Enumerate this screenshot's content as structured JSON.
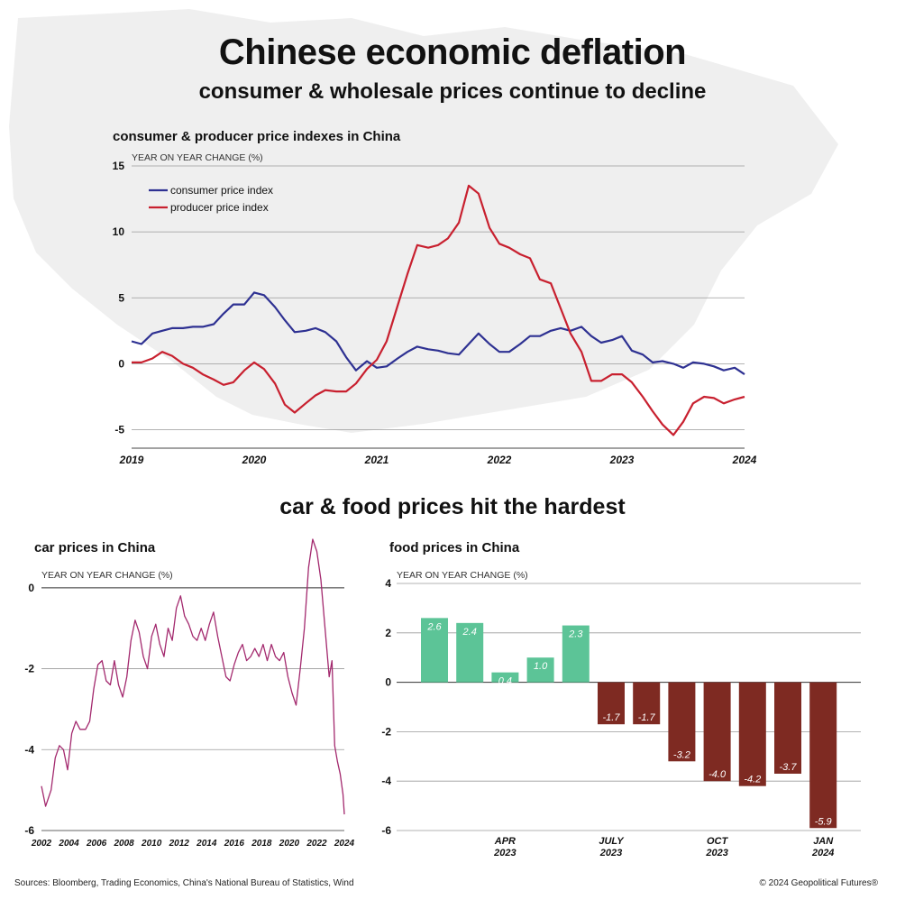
{
  "header": {
    "title": "Chinese economic deflation",
    "subtitle": "consumer & wholesale prices continue to decline"
  },
  "section_title": "car & food prices hit the hardest",
  "footer": {
    "sources": "Sources: Bloomberg, Trading Economics, China's National Bureau of Statistics, Wind",
    "copyright": "© 2024 Geopolitical Futures®"
  },
  "colors": {
    "cpi": "#2e3192",
    "ppi": "#c8202f",
    "car": "#a3296e",
    "food_positive": "#5cc497",
    "food_negative": "#7e2a22",
    "grid": "#9a9a9a",
    "map": "#efefef"
  },
  "chart_data": [
    {
      "type": "line",
      "title": "consumer & producer price indexes in China",
      "ylabel": "YEAR ON YEAR CHANGE (%)",
      "ylim": [
        -6,
        15
      ],
      "yticks": [
        15,
        10,
        5,
        0,
        -5
      ],
      "xlim": [
        2019,
        2024
      ],
      "xticks": [
        2019,
        2020,
        2021,
        2022,
        2023,
        2024
      ],
      "grid": true,
      "legend_position": "top-left",
      "series": [
        {
          "name": "consumer price index",
          "color_key": "cpi",
          "points": [
            [
              2019.0,
              1.7
            ],
            [
              2019.08,
              1.5
            ],
            [
              2019.17,
              2.3
            ],
            [
              2019.25,
              2.5
            ],
            [
              2019.33,
              2.7
            ],
            [
              2019.42,
              2.7
            ],
            [
              2019.5,
              2.8
            ],
            [
              2019.58,
              2.8
            ],
            [
              2019.67,
              3.0
            ],
            [
              2019.75,
              3.8
            ],
            [
              2019.83,
              4.5
            ],
            [
              2019.92,
              4.5
            ],
            [
              2020.0,
              5.4
            ],
            [
              2020.08,
              5.2
            ],
            [
              2020.17,
              4.3
            ],
            [
              2020.25,
              3.3
            ],
            [
              2020.33,
              2.4
            ],
            [
              2020.42,
              2.5
            ],
            [
              2020.5,
              2.7
            ],
            [
              2020.58,
              2.4
            ],
            [
              2020.67,
              1.7
            ],
            [
              2020.75,
              0.5
            ],
            [
              2020.83,
              -0.5
            ],
            [
              2020.92,
              0.2
            ],
            [
              2021.0,
              -0.3
            ],
            [
              2021.08,
              -0.2
            ],
            [
              2021.17,
              0.4
            ],
            [
              2021.25,
              0.9
            ],
            [
              2021.33,
              1.3
            ],
            [
              2021.42,
              1.1
            ],
            [
              2021.5,
              1.0
            ],
            [
              2021.58,
              0.8
            ],
            [
              2021.67,
              0.7
            ],
            [
              2021.75,
              1.5
            ],
            [
              2021.83,
              2.3
            ],
            [
              2021.92,
              1.5
            ],
            [
              2022.0,
              0.9
            ],
            [
              2022.08,
              0.9
            ],
            [
              2022.17,
              1.5
            ],
            [
              2022.25,
              2.1
            ],
            [
              2022.33,
              2.1
            ],
            [
              2022.42,
              2.5
            ],
            [
              2022.5,
              2.7
            ],
            [
              2022.58,
              2.5
            ],
            [
              2022.67,
              2.8
            ],
            [
              2022.75,
              2.1
            ],
            [
              2022.83,
              1.6
            ],
            [
              2022.92,
              1.8
            ],
            [
              2023.0,
              2.1
            ],
            [
              2023.08,
              1.0
            ],
            [
              2023.17,
              0.7
            ],
            [
              2023.25,
              0.1
            ],
            [
              2023.33,
              0.2
            ],
            [
              2023.42,
              0.0
            ],
            [
              2023.5,
              -0.3
            ],
            [
              2023.58,
              0.1
            ],
            [
              2023.67,
              0.0
            ],
            [
              2023.75,
              -0.2
            ],
            [
              2023.83,
              -0.5
            ],
            [
              2023.92,
              -0.3
            ],
            [
              2024.0,
              -0.8
            ]
          ]
        },
        {
          "name": "producer price index",
          "color_key": "ppi",
          "points": [
            [
              2019.0,
              0.1
            ],
            [
              2019.08,
              0.1
            ],
            [
              2019.17,
              0.4
            ],
            [
              2019.25,
              0.9
            ],
            [
              2019.33,
              0.6
            ],
            [
              2019.42,
              0.0
            ],
            [
              2019.5,
              -0.3
            ],
            [
              2019.58,
              -0.8
            ],
            [
              2019.67,
              -1.2
            ],
            [
              2019.75,
              -1.6
            ],
            [
              2019.83,
              -1.4
            ],
            [
              2019.92,
              -0.5
            ],
            [
              2020.0,
              0.1
            ],
            [
              2020.08,
              -0.4
            ],
            [
              2020.17,
              -1.5
            ],
            [
              2020.25,
              -3.1
            ],
            [
              2020.33,
              -3.7
            ],
            [
              2020.42,
              -3.0
            ],
            [
              2020.5,
              -2.4
            ],
            [
              2020.58,
              -2.0
            ],
            [
              2020.67,
              -2.1
            ],
            [
              2020.75,
              -2.1
            ],
            [
              2020.83,
              -1.5
            ],
            [
              2020.92,
              -0.4
            ],
            [
              2021.0,
              0.3
            ],
            [
              2021.08,
              1.7
            ],
            [
              2021.17,
              4.4
            ],
            [
              2021.25,
              6.8
            ],
            [
              2021.33,
              9.0
            ],
            [
              2021.42,
              8.8
            ],
            [
              2021.5,
              9.0
            ],
            [
              2021.58,
              9.5
            ],
            [
              2021.67,
              10.7
            ],
            [
              2021.75,
              13.5
            ],
            [
              2021.83,
              12.9
            ],
            [
              2021.92,
              10.3
            ],
            [
              2022.0,
              9.1
            ],
            [
              2022.08,
              8.8
            ],
            [
              2022.17,
              8.3
            ],
            [
              2022.25,
              8.0
            ],
            [
              2022.33,
              6.4
            ],
            [
              2022.42,
              6.1
            ],
            [
              2022.5,
              4.2
            ],
            [
              2022.58,
              2.3
            ],
            [
              2022.67,
              0.9
            ],
            [
              2022.75,
              -1.3
            ],
            [
              2022.83,
              -1.3
            ],
            [
              2022.92,
              -0.8
            ],
            [
              2023.0,
              -0.8
            ],
            [
              2023.08,
              -1.4
            ],
            [
              2023.17,
              -2.5
            ],
            [
              2023.25,
              -3.6
            ],
            [
              2023.33,
              -4.6
            ],
            [
              2023.42,
              -5.4
            ],
            [
              2023.5,
              -4.4
            ],
            [
              2023.58,
              -3.0
            ],
            [
              2023.67,
              -2.5
            ],
            [
              2023.75,
              -2.6
            ],
            [
              2023.83,
              -3.0
            ],
            [
              2023.92,
              -2.7
            ],
            [
              2024.0,
              -2.5
            ]
          ]
        }
      ]
    },
    {
      "type": "line",
      "title": "car prices in China",
      "ylabel": "YEAR ON YEAR CHANGE (%)",
      "ylim": [
        -6,
        1.2
      ],
      "yticks": [
        0,
        -2,
        -4,
        -6
      ],
      "xlim": [
        2002,
        2024
      ],
      "xticks": [
        2002,
        2004,
        2006,
        2008,
        2010,
        2012,
        2014,
        2016,
        2018,
        2020,
        2022,
        2024
      ],
      "grid": true,
      "series": [
        {
          "name": "",
          "color_key": "car",
          "points": [
            [
              2002.0,
              -4.9
            ],
            [
              2002.3,
              -5.4
            ],
            [
              2002.7,
              -5.0
            ],
            [
              2003.0,
              -4.2
            ],
            [
              2003.3,
              -3.9
            ],
            [
              2003.6,
              -4.0
            ],
            [
              2003.9,
              -4.5
            ],
            [
              2004.2,
              -3.6
            ],
            [
              2004.5,
              -3.3
            ],
            [
              2004.8,
              -3.5
            ],
            [
              2005.2,
              -3.5
            ],
            [
              2005.5,
              -3.3
            ],
            [
              2005.8,
              -2.5
            ],
            [
              2006.1,
              -1.9
            ],
            [
              2006.4,
              -1.8
            ],
            [
              2006.7,
              -2.3
            ],
            [
              2007.0,
              -2.4
            ],
            [
              2007.3,
              -1.8
            ],
            [
              2007.6,
              -2.4
            ],
            [
              2007.9,
              -2.7
            ],
            [
              2008.2,
              -2.2
            ],
            [
              2008.5,
              -1.3
            ],
            [
              2008.8,
              -0.8
            ],
            [
              2009.1,
              -1.1
            ],
            [
              2009.4,
              -1.7
            ],
            [
              2009.7,
              -2.0
            ],
            [
              2010.0,
              -1.2
            ],
            [
              2010.3,
              -0.9
            ],
            [
              2010.6,
              -1.4
            ],
            [
              2010.9,
              -1.7
            ],
            [
              2011.2,
              -1.0
            ],
            [
              2011.5,
              -1.3
            ],
            [
              2011.8,
              -0.5
            ],
            [
              2012.1,
              -0.2
            ],
            [
              2012.4,
              -0.7
            ],
            [
              2012.7,
              -0.9
            ],
            [
              2013.0,
              -1.2
            ],
            [
              2013.3,
              -1.3
            ],
            [
              2013.6,
              -1.0
            ],
            [
              2013.9,
              -1.3
            ],
            [
              2014.2,
              -0.9
            ],
            [
              2014.5,
              -0.6
            ],
            [
              2014.8,
              -1.2
            ],
            [
              2015.1,
              -1.7
            ],
            [
              2015.4,
              -2.2
            ],
            [
              2015.7,
              -2.3
            ],
            [
              2016.0,
              -1.9
            ],
            [
              2016.3,
              -1.6
            ],
            [
              2016.6,
              -1.4
            ],
            [
              2016.9,
              -1.8
            ],
            [
              2017.2,
              -1.7
            ],
            [
              2017.5,
              -1.5
            ],
            [
              2017.8,
              -1.7
            ],
            [
              2018.1,
              -1.4
            ],
            [
              2018.4,
              -1.8
            ],
            [
              2018.7,
              -1.4
            ],
            [
              2019.0,
              -1.7
            ],
            [
              2019.3,
              -1.8
            ],
            [
              2019.6,
              -1.6
            ],
            [
              2019.9,
              -2.2
            ],
            [
              2020.2,
              -2.6
            ],
            [
              2020.5,
              -2.9
            ],
            [
              2020.8,
              -2.0
            ],
            [
              2021.1,
              -1.0
            ],
            [
              2021.4,
              0.5
            ],
            [
              2021.7,
              1.2
            ],
            [
              2022.0,
              0.9
            ],
            [
              2022.3,
              0.2
            ],
            [
              2022.6,
              -1.0
            ],
            [
              2022.9,
              -2.2
            ],
            [
              2023.1,
              -1.8
            ],
            [
              2023.3,
              -3.9
            ],
            [
              2023.5,
              -4.3
            ],
            [
              2023.7,
              -4.6
            ],
            [
              2023.9,
              -5.1
            ],
            [
              2024.0,
              -5.6
            ]
          ]
        }
      ]
    },
    {
      "type": "bar",
      "title": "food prices in China",
      "ylabel": "YEAR ON YEAR CHANGE (%)",
      "ylim": [
        -6,
        4
      ],
      "yticks": [
        4,
        2,
        0,
        -2,
        -4,
        -6
      ],
      "grid": true,
      "x_labels": [
        {
          "index": 2,
          "line1": "APR",
          "line2": "2023"
        },
        {
          "index": 5,
          "line1": "JULY",
          "line2": "2023"
        },
        {
          "index": 8,
          "line1": "OCT",
          "line2": "2023"
        },
        {
          "index": 11,
          "line1": "JAN",
          "line2": "2024"
        }
      ],
      "values": [
        2.6,
        2.4,
        0.4,
        1.0,
        2.3,
        -1.7,
        -1.7,
        -3.2,
        -4.0,
        -4.2,
        -3.7,
        -5.9
      ],
      "labels": [
        "2.6",
        "2.4",
        "0.4",
        "1.0",
        "2.3",
        "-1.7",
        "-1.7",
        "-3.2",
        "-4.0",
        "-4.2",
        "-3.7",
        "-5.9"
      ]
    }
  ]
}
